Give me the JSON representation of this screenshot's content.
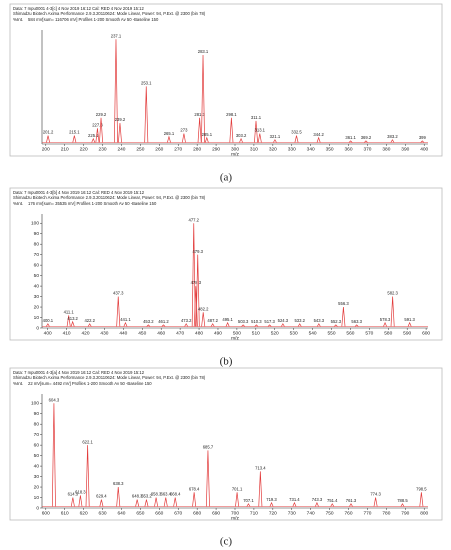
{
  "chart_data": [
    {
      "type": "spectrum",
      "info": [
        "Data: 7 mpu0001 4-3[c] 4 Nov 2019 16:12 Cal: RED 4 Nov 2019 15:12",
        "Shimadzu Biotech Axima Performance 2.9.3.20110624: Mode Linear, Power: 94, P.Ext. @ 2300 (bin 78)"
      ],
      "ylabel": "%Int.",
      "intensity_note": "584 mV[sum= 116706 mV] Profiles 1-200 Smooth Av 50 -Baseline 150",
      "xlabel": "m/z",
      "caption": "(a)",
      "color": "#e23b3b",
      "x": [
        201.2,
        215.1,
        225.1,
        227.3,
        229.2,
        237.1,
        239.2,
        253.1,
        265.1,
        273.0,
        281.3,
        283.1,
        285.1,
        298.1,
        303.2,
        311.1,
        313.1,
        321.1,
        332.5,
        344.2,
        361.1,
        369.2,
        383.2,
        399
      ],
      "values": [
        8,
        8,
        5,
        15,
        25,
        100,
        20,
        55,
        7,
        10,
        25,
        85,
        6,
        25,
        5,
        22,
        10,
        4,
        8,
        6,
        3,
        3,
        4,
        3
      ],
      "xlim": [
        198,
        402
      ],
      "ylim": [
        0,
        105
      ],
      "xticks": [
        200,
        210,
        220,
        230,
        240,
        250,
        260,
        270,
        280,
        290,
        300,
        310,
        320,
        330,
        340,
        350,
        360,
        370,
        380,
        390,
        400
      ]
    },
    {
      "type": "spectrum",
      "info": [
        "Data: 7 mpu0001 4-3[b] 4 Nov 2019 16:12 Cal: RED 4 Nov 2019 15:12",
        "Shimadzu Biotech Axima Performance 2.9.3.20110624: Mode Linear, Power: 94, P.Ext. @ 2300 (bin 78)"
      ],
      "ylabel": "%Int.",
      "intensity_note": "176 mV[sum= 35535 mV] Profiles 1-200 Smooth Av 50 -Baseline 150",
      "xlabel": "m/z",
      "caption": "(b)",
      "color": "#e23b3b",
      "x": [
        400.1,
        411.1,
        413.2,
        422.2,
        437.3,
        441.1,
        453.2,
        461.2,
        473.2,
        477.2,
        478.3,
        479.3,
        482.2,
        487.2,
        495.1,
        503.3,
        510.3,
        517.3,
        524.3,
        533.2,
        543.3,
        552.3,
        556.3,
        563.3,
        578.3,
        582.3,
        591.3
      ],
      "values": [
        4,
        12,
        6,
        4,
        30,
        5,
        3,
        3,
        4,
        100,
        40,
        70,
        15,
        4,
        5,
        3,
        3,
        3,
        4,
        4,
        4,
        3,
        20,
        3,
        5,
        30,
        5
      ],
      "xlim": [
        397,
        601
      ],
      "ylim": [
        0,
        105
      ],
      "xticks": [
        400,
        410,
        420,
        430,
        440,
        450,
        460,
        470,
        480,
        490,
        500,
        510,
        520,
        530,
        540,
        550,
        560,
        570,
        580,
        590,
        600
      ],
      "yticks": [
        0,
        10,
        20,
        30,
        40,
        50,
        60,
        70,
        80,
        90,
        100
      ]
    },
    {
      "type": "spectrum",
      "info": [
        "Data: 7 mpu0001 4-3[a] 4 Nov 2019 16:12 Cal: RED 4 Nov 2019 15:12",
        "Shimadzu Biotech Axima Performance 2.9.3.20110624: Mode Linear, Power: 94, P.Ext. @ 2300 (bin 78)"
      ],
      "ylabel": "%Int.",
      "intensity_note": "22 mV[sum= 4492 mV] Profiles 1-200 Smooth Av 50 -Baseline 150",
      "xlabel": "m/z",
      "caption": "(c)",
      "color": "#e23b3b",
      "x": [
        604.3,
        614.3,
        618.3,
        622.1,
        629.4,
        638.3,
        648.3,
        653.2,
        658.3,
        663.4,
        668.4,
        678.4,
        685.7,
        701.1,
        707.1,
        713.4,
        719.3,
        731.4,
        743.3,
        751.4,
        761.3,
        774.3,
        788.5,
        798.5
      ],
      "values": [
        100,
        10,
        12,
        60,
        8,
        20,
        8,
        8,
        10,
        10,
        10,
        15,
        55,
        15,
        4,
        35,
        5,
        5,
        5,
        4,
        4,
        10,
        4,
        15
      ],
      "xlim": [
        598,
        802
      ],
      "ylim": [
        0,
        105
      ],
      "xticks": [
        600,
        610,
        620,
        630,
        640,
        650,
        660,
        670,
        680,
        690,
        700,
        710,
        720,
        730,
        740,
        750,
        760,
        770,
        780,
        790,
        800
      ],
      "yticks": [
        0,
        10,
        20,
        30,
        40,
        50,
        60,
        70,
        80,
        90,
        100
      ]
    }
  ]
}
